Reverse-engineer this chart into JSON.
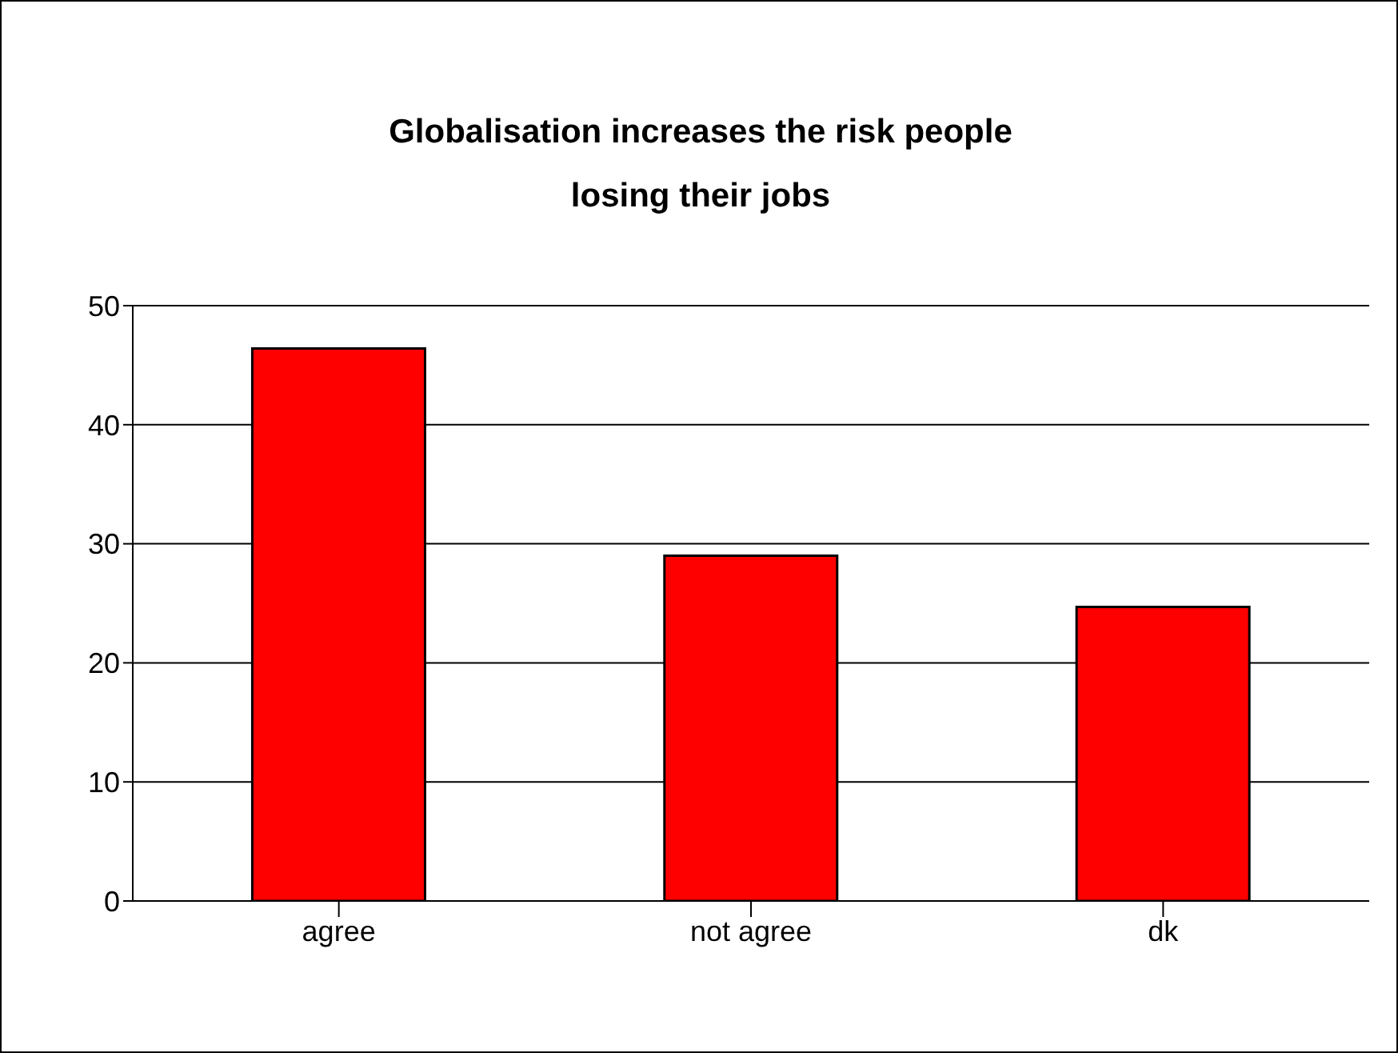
{
  "chart_data": {
    "type": "bar",
    "title": "Globalisation increases the risk people losing their jobs",
    "categories": [
      "agree",
      "not agree",
      "dk"
    ],
    "values": [
      46.4,
      29.0,
      24.7
    ],
    "color": "#ff0000",
    "ylim": [
      0,
      50
    ],
    "yticks": [
      0,
      10,
      20,
      30,
      40,
      50
    ],
    "grid": "y",
    "legend": false
  }
}
